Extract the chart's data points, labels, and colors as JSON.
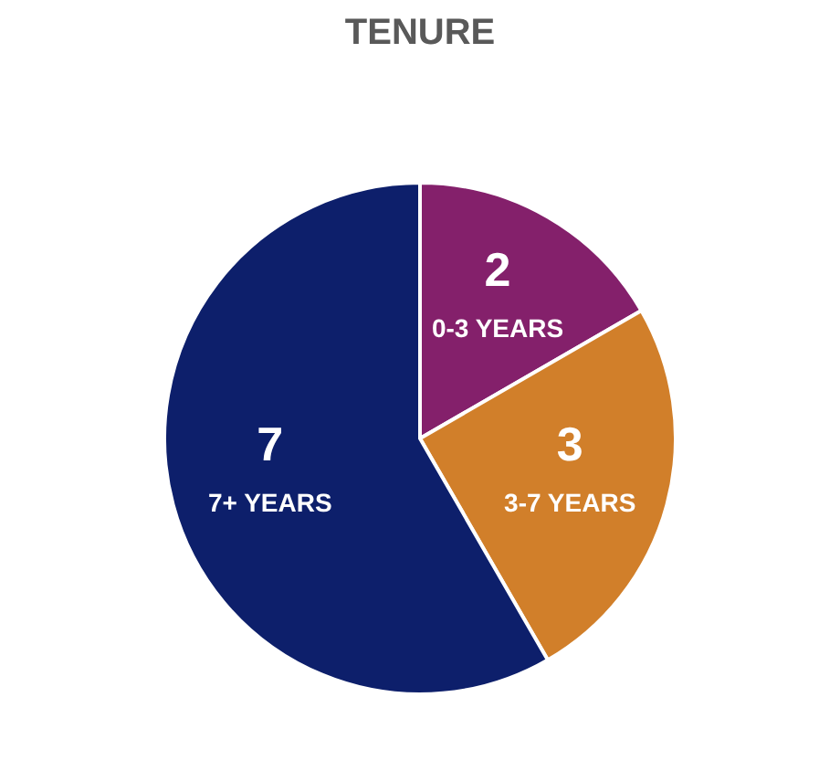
{
  "chart_data": {
    "type": "pie",
    "title": "TENURE",
    "categories": [
      "0-3 YEARS",
      "3-7 YEARS",
      "7+ YEARS"
    ],
    "values": [
      2,
      3,
      7
    ],
    "colors": [
      "#84206b",
      "#d17f2a",
      "#0d1f6b"
    ],
    "data_labels": true,
    "legend": false
  }
}
